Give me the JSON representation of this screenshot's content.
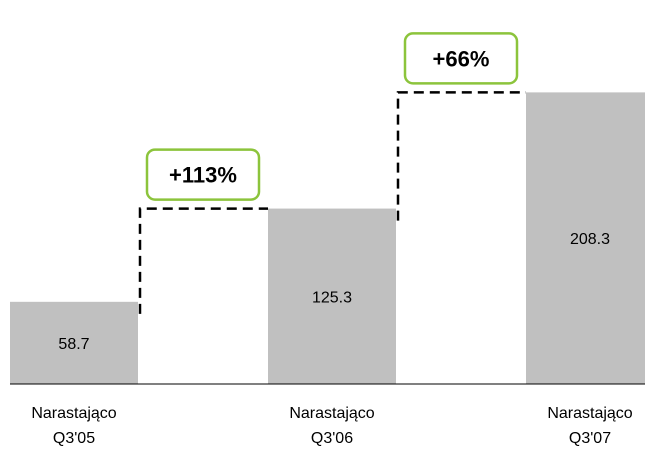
{
  "chart_data": {
    "type": "bar",
    "title": "",
    "xlabel": "",
    "ylabel": "",
    "ylim": [
      0,
      230
    ],
    "categories": [
      [
        "Narastająco",
        "Q3'05"
      ],
      [
        "Narastająco",
        "Q3'06"
      ],
      [
        "Narastająco",
        "Q3'07"
      ]
    ],
    "values": [
      58.7,
      125.3,
      208.3
    ],
    "value_labels": [
      "58.7",
      "125.3",
      "208.3"
    ],
    "growth_annotations": [
      {
        "from": 0,
        "to": 1,
        "label": "+113%"
      },
      {
        "from": 1,
        "to": 2,
        "label": "+66%"
      }
    ],
    "grid": false,
    "legend": "none"
  },
  "colors": {
    "bar": "#c0c0c0",
    "axis": "#000000",
    "connector": "#000000",
    "badge_border": "#8cc43c",
    "badge_fill": "#ffffff"
  }
}
